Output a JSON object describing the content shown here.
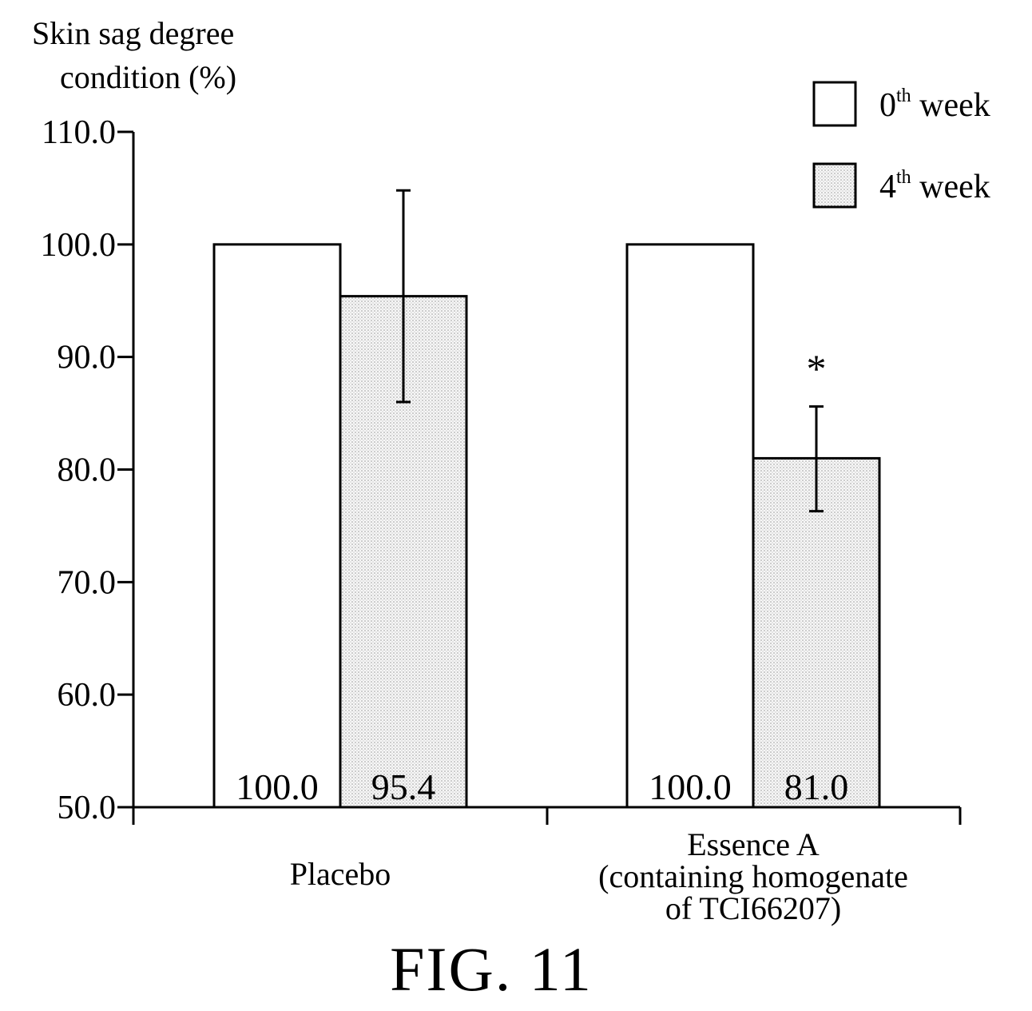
{
  "chart_data": {
    "type": "bar",
    "ylabel_lines": [
      "Skin sag degree",
      "condition (%)"
    ],
    "ylim": [
      50,
      110
    ],
    "yticks": [
      "50.0",
      "60.0",
      "70.0",
      "80.0",
      "90.0",
      "100.0",
      "110.0"
    ],
    "categories": [
      {
        "lines": [
          "Placebo"
        ]
      },
      {
        "lines": [
          "Essence A",
          "(containing homogenate",
          "of TCI66207)"
        ]
      }
    ],
    "series": [
      {
        "name": "0",
        "superscript": "th",
        "suffix": " week",
        "values": [
          100.0,
          100.0
        ],
        "value_labels": [
          "100.0",
          "100.0"
        ],
        "error": [
          null,
          null
        ],
        "fill": "white"
      },
      {
        "name": "4",
        "superscript": "th",
        "suffix": " week",
        "values": [
          95.4,
          81.0
        ],
        "value_labels": [
          "95.4",
          "81.0"
        ],
        "error": [
          [
            86.0,
            104.8
          ],
          [
            76.3,
            85.6
          ]
        ],
        "fill": "dotted"
      }
    ],
    "annotations": [
      {
        "text": "*",
        "category": 1,
        "series": 1
      }
    ],
    "legend": "top-right",
    "grid": false
  },
  "caption": "FIG. 11"
}
